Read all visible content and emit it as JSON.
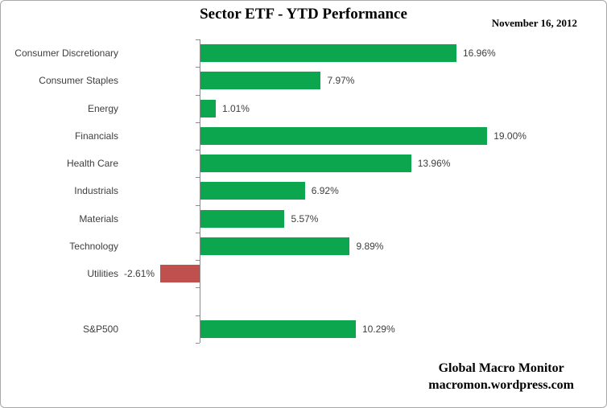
{
  "chart_data": {
    "type": "bar",
    "orientation": "horizontal",
    "title": "Sector ETF - YTD Performance",
    "date_label": "November 16, 2012",
    "categories": [
      "Consumer Discretionary",
      "Consumer Staples",
      "Energy",
      "Financials",
      "Health Care",
      "Industrials",
      "Materials",
      "Technology",
      "Utilities",
      "",
      "S&P500"
    ],
    "values": [
      16.96,
      7.97,
      1.01,
      19.0,
      13.96,
      6.92,
      5.57,
      9.89,
      -2.61,
      null,
      10.29
    ],
    "value_labels": [
      "16.96%",
      "7.97%",
      "1.01%",
      "19.00%",
      "13.96%",
      "6.92%",
      "5.57%",
      "9.89%",
      "-2.61%",
      "",
      "10.29%"
    ],
    "xlabel": "",
    "ylabel": "",
    "xlim": [
      -2.72,
      26.2
    ],
    "grid": false,
    "legend": false,
    "colors": {
      "positive_bar": "#0ca64f",
      "negative_bar": "#c0504d",
      "axis": "#8c8c8c",
      "label_text": "#3e3e3e"
    }
  },
  "footer": {
    "line1": "Global Macro Monitor",
    "line2": "macromon.wordpress.com"
  }
}
